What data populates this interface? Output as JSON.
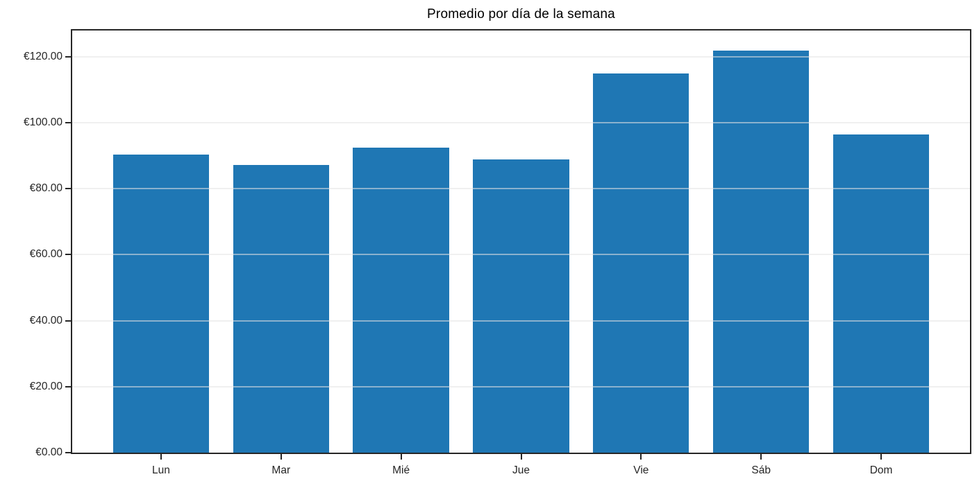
{
  "chart_data": {
    "type": "bar",
    "title": "Promedio por día de la semana",
    "categories": [
      "Lun",
      "Mar",
      "Mié",
      "Jue",
      "Vie",
      "Sáb",
      "Dom"
    ],
    "values": [
      90.3,
      87.2,
      92.4,
      88.8,
      114.8,
      121.8,
      96.4
    ],
    "xlabel": "",
    "ylabel": "",
    "ylim": [
      0,
      127.9
    ],
    "yticks": [
      0,
      20,
      40,
      60,
      80,
      100,
      120
    ],
    "ytick_labels": [
      "€0.00",
      "€20.00",
      "€40.00",
      "€60.00",
      "€80.00",
      "€100.00",
      "€120.00"
    ],
    "bar_color": "#1f77b4",
    "frame_color": "#262626",
    "grid": "horizontal",
    "gridline_color": "#e3e3e3",
    "legend": "none"
  }
}
